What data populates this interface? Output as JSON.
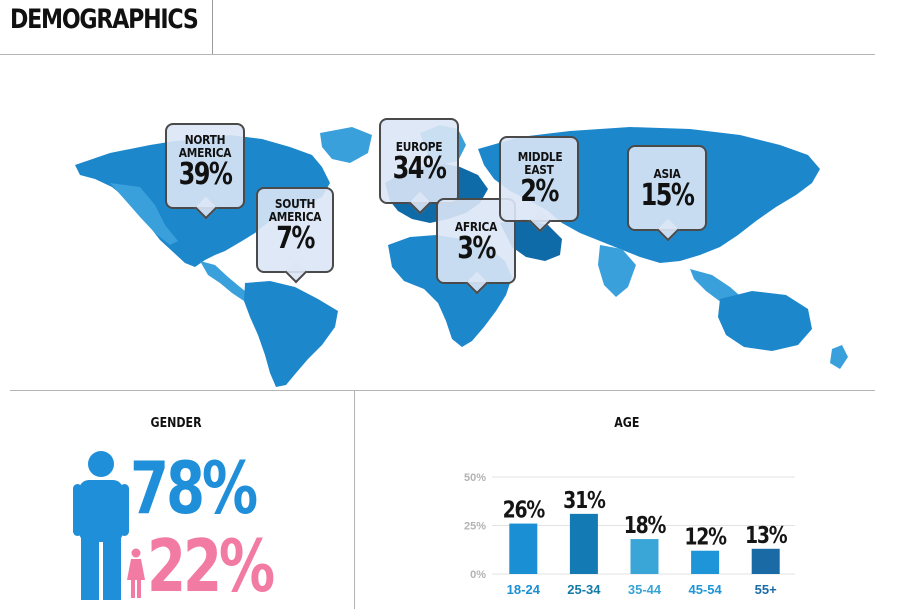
{
  "header": {
    "title": "DEMOGRAPHICS"
  },
  "colors": {
    "map_light": "#3aa0dc",
    "map_mid": "#1d87cc",
    "map_dark": "#0f6aa8",
    "gender_male": "#1e8fd8",
    "gender_female": "#f27ba3"
  },
  "map": {
    "callouts": [
      {
        "label": "NORTH AMERICA",
        "value": "39%"
      },
      {
        "label": "SOUTH AMERICA",
        "value": "7%"
      },
      {
        "label": "EUROPE",
        "value": "34%"
      },
      {
        "label": "AFRICA",
        "value": "3%"
      },
      {
        "label": "MIDDLE EAST",
        "value": "2%"
      },
      {
        "label": "ASIA",
        "value": "15%"
      }
    ]
  },
  "gender": {
    "title": "GENDER",
    "male_value": "78%",
    "female_value": "22%",
    "male_icon": "male-figure-icon",
    "female_icon": "female-figure-icon"
  },
  "age": {
    "title": "AGE"
  },
  "chart_data": {
    "type": "bar",
    "title": "AGE",
    "categories": [
      "18-24",
      "25-34",
      "35-44",
      "45-54",
      "55+"
    ],
    "values": [
      26,
      31,
      18,
      12,
      13
    ],
    "value_labels": [
      "26%",
      "31%",
      "18%",
      "12%",
      "13%"
    ],
    "ylim": [
      0,
      50
    ],
    "yticks": [
      "0%",
      "25%",
      "50%"
    ],
    "bar_colors": [
      "#1a8fd4",
      "#137ab3",
      "#3aa6d8",
      "#1d95d8",
      "#1a6aa6"
    ],
    "label_colors": [
      "#1a8fd4",
      "#147aa8",
      "#38a4d4",
      "#1d95d8",
      "#1a6aa6"
    ],
    "grid": true
  }
}
